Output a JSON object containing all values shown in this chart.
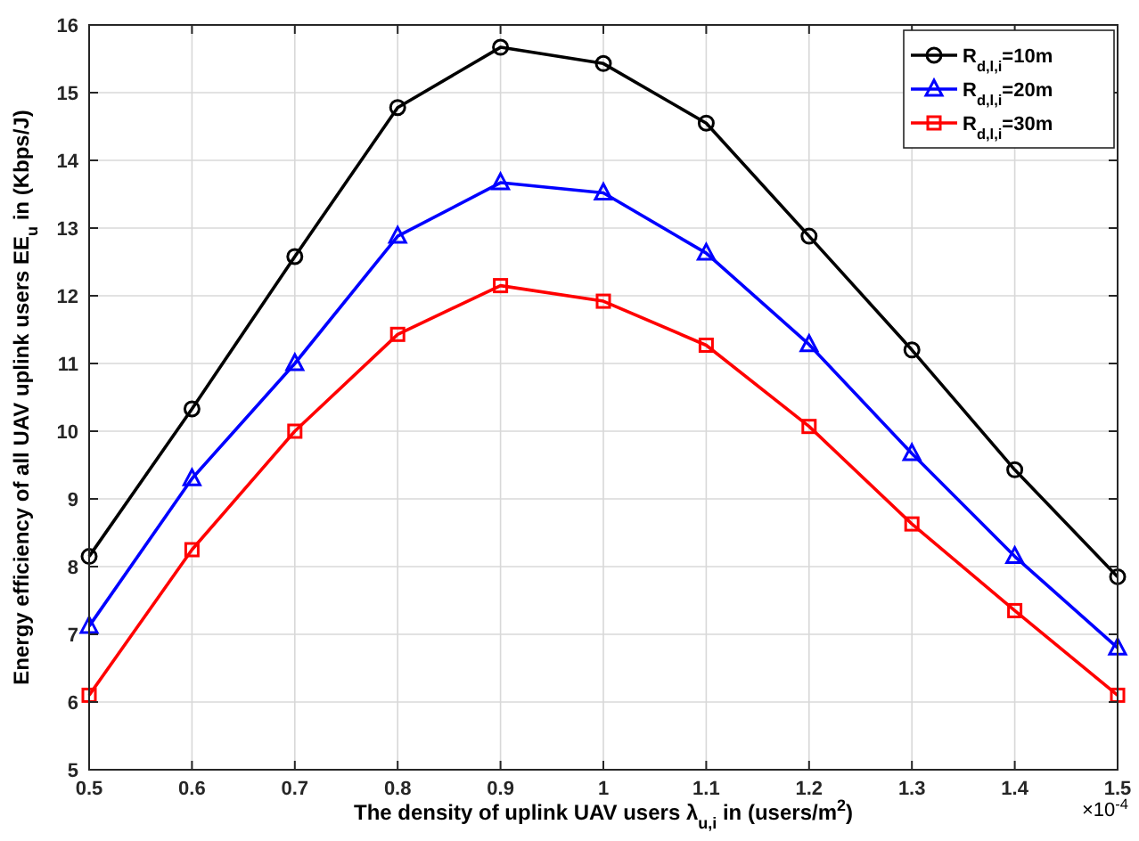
{
  "chart_data": {
    "type": "line",
    "xlabel": "The density of uplink  UAV users λ$_{u,i}$ in (users/m$^{2}$)",
    "ylabel": "Energy efficiency of all UAV uplink users EE$_{u}$ in (Kbps/J)",
    "annotations": [
      "×10$^{-4}$"
    ],
    "x": [
      0.5,
      0.6,
      0.7,
      0.8,
      0.9,
      1.0,
      1.1,
      1.2,
      1.3,
      1.4,
      1.5
    ],
    "series": [
      {
        "name": "R$_{d,l,i}$=10m",
        "color": "#000000",
        "marker": "circle",
        "values": [
          8.15,
          10.33,
          12.58,
          14.78,
          15.67,
          15.43,
          14.55,
          12.88,
          11.2,
          9.43,
          7.85
        ]
      },
      {
        "name": "R$_{d,l,i}$=20m",
        "color": "#0000ff",
        "marker": "triangle",
        "values": [
          7.12,
          9.3,
          11.0,
          12.88,
          13.67,
          13.52,
          12.63,
          11.28,
          9.67,
          8.15,
          6.8
        ]
      },
      {
        "name": "R$_{d,l,i}$=30m",
        "color": "#ff0000",
        "marker": "square",
        "values": [
          6.1,
          8.25,
          10.0,
          11.43,
          12.15,
          11.92,
          11.27,
          10.07,
          8.63,
          7.35,
          6.1
        ]
      }
    ],
    "xlim": [
      0.5,
      1.5
    ],
    "xticks": [
      0.5,
      0.6,
      0.7,
      0.8,
      0.9,
      1,
      1.1,
      1.2,
      1.3,
      1.4,
      1.5
    ],
    "ylim": [
      5,
      16
    ],
    "yticks": [
      5,
      6,
      7,
      8,
      9,
      10,
      11,
      12,
      13,
      14,
      15,
      16
    ],
    "grid": true,
    "legend": "top right"
  }
}
